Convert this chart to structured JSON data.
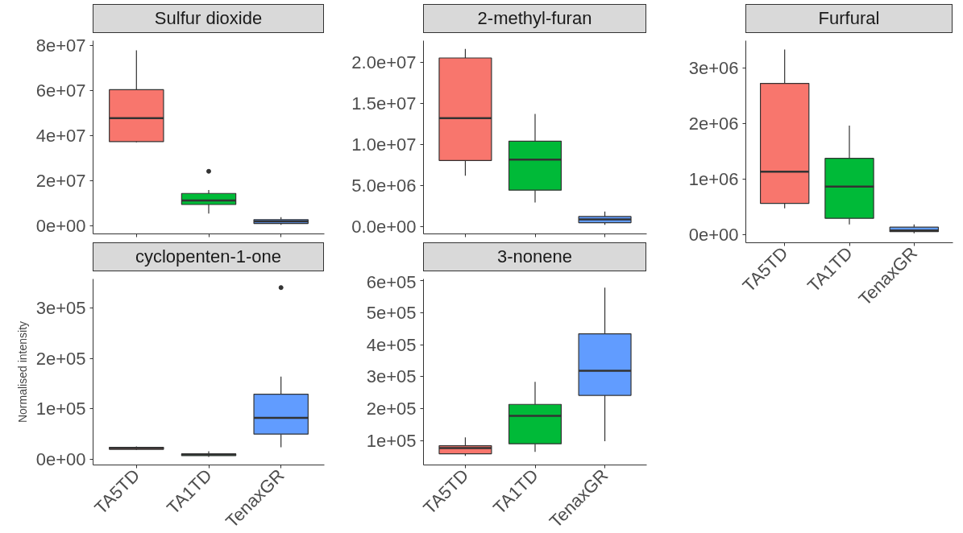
{
  "chart_data": [
    {
      "type": "box",
      "title": "Sulfur dioxide",
      "categories": [
        null,
        null,
        null
      ],
      "colors": [
        "#f8766d",
        "#00ba38",
        "#619cff"
      ],
      "ylim": [
        -3500000,
        82000000
      ],
      "yticks": [
        {
          "value": 0,
          "label": "0e+00"
        },
        {
          "value": 20000000,
          "label": "2e+07"
        },
        {
          "value": 40000000,
          "label": "4e+07"
        },
        {
          "value": 60000000,
          "label": "6e+07"
        },
        {
          "value": 80000000,
          "label": "8e+07"
        }
      ],
      "tick_labels": "y",
      "boxes": [
        {
          "low": 37000000,
          "q1": 37300000,
          "median": 47700000,
          "q3": 60300000,
          "high": 77700000
        },
        {
          "low": 5500000,
          "q1": 9500000,
          "median": 11300000,
          "q3": 14400000,
          "high": 15900000,
          "outliers": [
            24200000
          ]
        },
        {
          "low": 500000,
          "q1": 1100000,
          "median": 2000000,
          "q3": 2800000,
          "high": 3900000
        }
      ]
    },
    {
      "type": "box",
      "title": "2-methyl-furan",
      "categories": [
        null,
        null,
        null
      ],
      "colors": [
        "#f8766d",
        "#00ba38",
        "#619cff"
      ],
      "ylim": [
        -850000,
        22600000
      ],
      "yticks": [
        {
          "value": 0,
          "label": "0.0e+00"
        },
        {
          "value": 5000000,
          "label": "5.0e+06"
        },
        {
          "value": 10000000,
          "label": "1.0e+07"
        },
        {
          "value": 15000000,
          "label": "1.5e+07"
        },
        {
          "value": 20000000,
          "label": "2.0e+07"
        }
      ],
      "tick_labels": "y",
      "boxes": [
        {
          "low": 6200000,
          "q1": 8060000,
          "median": 13200000,
          "q3": 20500000,
          "high": 21600000
        },
        {
          "low": 2960000,
          "q1": 4460000,
          "median": 8160000,
          "q3": 10400000,
          "high": 13700000
        },
        {
          "low": 240000,
          "q1": 510000,
          "median": 920000,
          "q3": 1260000,
          "high": 1870000
        }
      ]
    },
    {
      "type": "box",
      "title": "Furfural",
      "categories": [
        "TA5TD",
        "TA1TD",
        "TenaxGR"
      ],
      "colors": [
        "#f8766d",
        "#00ba38",
        "#619cff"
      ],
      "ylim": [
        -150000,
        3490000
      ],
      "yticks": [
        {
          "value": 0,
          "label": "0e+00"
        },
        {
          "value": 1000000,
          "label": "1e+06"
        },
        {
          "value": 2000000,
          "label": "2e+06"
        },
        {
          "value": 3000000,
          "label": "3e+06"
        }
      ],
      "boxes": [
        {
          "low": 470000,
          "q1": 560000,
          "median": 1130000,
          "q3": 2720000,
          "high": 3330000
        },
        {
          "low": 180000,
          "q1": 290000,
          "median": 860000,
          "q3": 1370000,
          "high": 1960000
        },
        {
          "low": 20000,
          "q1": 50000,
          "median": 70000,
          "q3": 130000,
          "high": 180000
        }
      ]
    },
    {
      "type": "box",
      "title": "cyclopenten-1-one",
      "ylabel": "Normalised intensity",
      "categories": [
        "TA5TD",
        "TA1TD",
        "TenaxGR"
      ],
      "colors": [
        "#f8766d",
        "#00ba38",
        "#619cff"
      ],
      "ylim": [
        -11000,
        357000
      ],
      "yticks": [
        {
          "value": 0,
          "label": "0e+00"
        },
        {
          "value": 100000,
          "label": "1e+05"
        },
        {
          "value": 200000,
          "label": "2e+05"
        },
        {
          "value": 300000,
          "label": "3e+05"
        }
      ],
      "boxes": [
        {
          "low": 19000,
          "q1": 20000,
          "median": 22400,
          "q3": 24000,
          "high": 25600
        },
        {
          "low": 4800,
          "q1": 7500,
          "median": 9600,
          "q3": 11000,
          "high": 16000
        },
        {
          "low": 24000,
          "q1": 50000,
          "median": 82000,
          "q3": 129000,
          "high": 164000,
          "outliers": [
            340000
          ]
        }
      ]
    },
    {
      "type": "box",
      "title": "3-nonene",
      "categories": [
        "TA5TD",
        "TA1TD",
        "TenaxGR"
      ],
      "colors": [
        "#f8766d",
        "#00ba38",
        "#619cff"
      ],
      "ylim": [
        25000,
        605000
      ],
      "yticks": [
        {
          "value": 100000,
          "label": "1e+05"
        },
        {
          "value": 200000,
          "label": "2e+05"
        },
        {
          "value": 300000,
          "label": "3e+05"
        },
        {
          "value": 400000,
          "label": "4e+05"
        },
        {
          "value": 500000,
          "label": "5e+05"
        },
        {
          "value": 600000,
          "label": "6e+05"
        }
      ],
      "boxes": [
        {
          "low": 53000,
          "q1": 60000,
          "median": 78000,
          "q3": 85000,
          "high": 111000
        },
        {
          "low": 66000,
          "q1": 91000,
          "median": 178000,
          "q3": 214000,
          "high": 284000
        },
        {
          "low": 99000,
          "q1": 242000,
          "median": 319000,
          "q3": 434000,
          "high": 578000
        }
      ]
    }
  ]
}
